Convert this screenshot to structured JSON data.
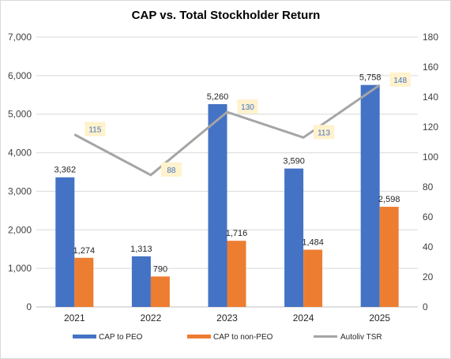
{
  "chart_data": {
    "type": "bar",
    "title": "CAP vs. Total Stockholder Return",
    "categories": [
      "2021",
      "2022",
      "2023",
      "2024",
      "2025"
    ],
    "series": [
      {
        "name": "CAP to PEO",
        "type": "bar",
        "axis": "left",
        "color": "#4472c4",
        "values": [
          3362,
          1313,
          5260,
          3590,
          5758
        ],
        "labels": [
          "3,362",
          "1,313",
          "5,260",
          "3,590",
          "5,758"
        ]
      },
      {
        "name": "CAP to non-PEO",
        "type": "bar",
        "axis": "left",
        "color": "#ed7d31",
        "values": [
          1274,
          790,
          1716,
          1484,
          2598
        ],
        "labels": [
          "1,274",
          "790",
          "1,716",
          "1,484",
          "2,598"
        ]
      },
      {
        "name": "Autoliv TSR",
        "type": "line",
        "axis": "right",
        "color": "#a5a5a5",
        "values": [
          115,
          88,
          130,
          113,
          148
        ],
        "labels": [
          "115",
          "88",
          "130",
          "113",
          "148"
        ]
      }
    ],
    "y_left": {
      "min": 0,
      "max": 7000,
      "ticks": [
        0,
        1000,
        2000,
        3000,
        4000,
        5000,
        6000,
        7000
      ],
      "tick_labels": [
        "0",
        "1,000",
        "2,000",
        "3,000",
        "4,000",
        "5,000",
        "6,000",
        "7,000"
      ]
    },
    "y_right": {
      "min": 0,
      "max": 180,
      "ticks": [
        0,
        20,
        40,
        60,
        80,
        100,
        120,
        140,
        160,
        180
      ],
      "tick_labels": [
        "0",
        "20",
        "40",
        "60",
        "80",
        "100",
        "120",
        "140",
        "160",
        "180"
      ]
    },
    "grid": true,
    "legend": "bottom",
    "tsr_label_bg": "#fff2cc"
  }
}
